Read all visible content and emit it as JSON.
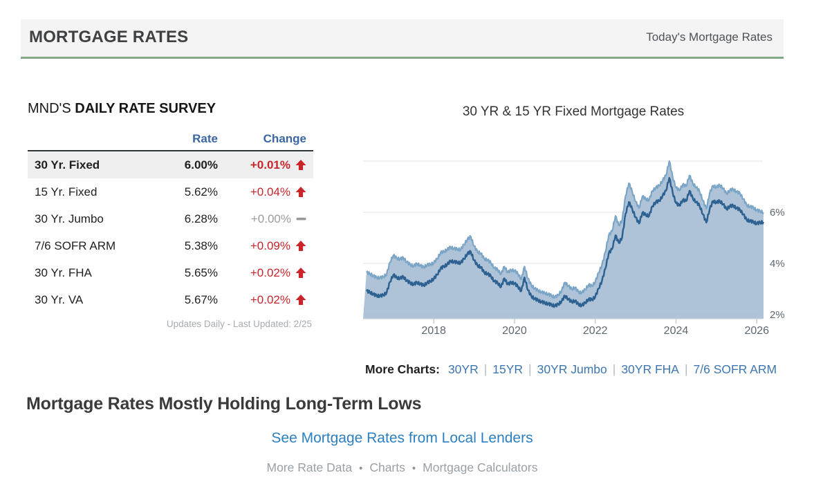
{
  "header": {
    "title": "MORTGAGE RATES",
    "right_link": "Today's Mortgage Rates"
  },
  "survey": {
    "title_prefix": "MND'S",
    "title_bold": "DAILY RATE SURVEY",
    "columns": {
      "rate": "Rate",
      "change": "Change"
    },
    "rows": [
      {
        "label": "30 Yr. Fixed",
        "rate": "6.00%",
        "change": "+0.01%",
        "direction": "up",
        "highlight": true
      },
      {
        "label": "15 Yr. Fixed",
        "rate": "5.62%",
        "change": "+0.04%",
        "direction": "up",
        "highlight": false
      },
      {
        "label": "30 Yr. Jumbo",
        "rate": "6.28%",
        "change": "+0.00%",
        "direction": "flat",
        "highlight": false
      },
      {
        "label": "7/6 SOFR ARM",
        "rate": "5.38%",
        "change": "+0.09%",
        "direction": "up",
        "highlight": false
      },
      {
        "label": "30 Yr. FHA",
        "rate": "5.65%",
        "change": "+0.02%",
        "direction": "up",
        "highlight": false
      },
      {
        "label": "30 Yr. VA",
        "rate": "5.67%",
        "change": "+0.02%",
        "direction": "up",
        "highlight": false
      }
    ],
    "footnote": "Updates Daily - Last Updated: 2/25"
  },
  "chart_data": {
    "type": "area",
    "title": "30 YR & 15 YR Fixed Mortgage Rates",
    "xlabel": "",
    "ylabel": "",
    "x_start_year": 2016.3333,
    "x_step_years": 0.08333,
    "xlim": [
      2016.25,
      2026.15
    ],
    "ylim": [
      1.84,
      8
    ],
    "x_ticks": [
      2018,
      2020,
      2022,
      2024,
      2026
    ],
    "y_ticks": [
      6,
      4,
      2
    ],
    "y_tick_suffix": "%",
    "grid": true,
    "legend_position": "none",
    "series": [
      {
        "name": "30 Yr Fixed",
        "style": "area+line",
        "line_color": "#7ba5c6",
        "fill_color": "#a7bed4",
        "values": [
          3.65,
          3.6,
          3.52,
          3.45,
          3.44,
          3.47,
          3.58,
          4.05,
          4.32,
          4.2,
          4.17,
          4.22,
          4.05,
          3.96,
          3.89,
          3.99,
          3.92,
          3.85,
          3.94,
          3.96,
          4.02,
          4.18,
          4.42,
          4.46,
          4.54,
          4.64,
          4.58,
          4.56,
          4.54,
          4.74,
          4.94,
          5.05,
          4.68,
          4.46,
          4.4,
          4.18,
          4.14,
          4.02,
          3.82,
          3.76,
          3.58,
          3.88,
          3.65,
          3.74,
          3.72,
          3.6,
          3.38,
          3.88,
          3.4,
          3.15,
          3.02,
          2.94,
          2.88,
          2.84,
          2.8,
          2.74,
          2.68,
          2.76,
          2.94,
          3.26,
          3.12,
          3.0,
          3.06,
          2.88,
          2.86,
          2.98,
          3.16,
          3.12,
          3.28,
          3.64,
          3.94,
          4.44,
          5.1,
          5.26,
          5.86,
          5.48,
          5.7,
          6.64,
          7.14,
          6.8,
          6.42,
          6.16,
          6.62,
          6.52,
          6.48,
          6.84,
          6.96,
          7.04,
          7.24,
          7.44,
          8.0,
          7.38,
          6.96,
          6.86,
          7.08,
          7.02,
          7.44,
          7.12,
          6.98,
          6.82,
          6.46,
          6.14,
          6.74,
          7.04,
          6.98,
          7.06,
          6.94,
          6.72,
          6.86,
          6.9,
          6.8,
          6.74,
          6.52,
          6.28,
          6.22,
          6.18,
          6.08,
          6.04,
          6.0
        ]
      },
      {
        "name": "15 Yr Fixed",
        "style": "line",
        "line_color": "#2d6191",
        "values": [
          2.92,
          2.88,
          2.8,
          2.74,
          2.73,
          2.76,
          2.86,
          3.28,
          3.56,
          3.44,
          3.42,
          3.48,
          3.32,
          3.24,
          3.18,
          3.26,
          3.2,
          3.14,
          3.24,
          3.3,
          3.4,
          3.56,
          3.8,
          3.88,
          3.96,
          4.1,
          4.06,
          4.04,
          4.02,
          4.18,
          4.38,
          4.46,
          4.12,
          3.92,
          3.86,
          3.64,
          3.6,
          3.5,
          3.3,
          3.24,
          3.08,
          3.42,
          3.18,
          3.26,
          3.22,
          3.1,
          2.92,
          3.45,
          2.95,
          2.72,
          2.62,
          2.56,
          2.5,
          2.46,
          2.42,
          2.38,
          2.34,
          2.4,
          2.52,
          2.74,
          2.6,
          2.5,
          2.54,
          2.4,
          2.36,
          2.46,
          2.6,
          2.58,
          2.7,
          3.02,
          3.32,
          3.8,
          4.4,
          4.56,
          5.1,
          4.8,
          5.02,
          5.94,
          6.4,
          6.12,
          5.8,
          5.56,
          5.98,
          5.9,
          5.86,
          6.24,
          6.4,
          6.44,
          6.64,
          6.84,
          7.35,
          6.78,
          6.36,
          6.26,
          6.48,
          6.44,
          6.84,
          6.54,
          6.4,
          6.26,
          5.92,
          5.6,
          6.12,
          6.44,
          6.38,
          6.44,
          6.32,
          6.12,
          6.24,
          6.26,
          6.16,
          6.1,
          5.92,
          5.7,
          5.66,
          5.62,
          5.56,
          5.6,
          5.62
        ]
      }
    ]
  },
  "more_charts": {
    "label": "More Charts:",
    "links": [
      "30YR",
      "15YR",
      "30YR Jumbo",
      "30YR FHA",
      "7/6 SOFR ARM"
    ]
  },
  "headline": "Mortgage Rates Mostly Holding Long-Term Lows",
  "cta_link": "See Mortgage Rates from Local Lenders",
  "footer_links": [
    "More Rate Data",
    "Charts",
    "Mortgage Calculators"
  ],
  "colors": {
    "header_bg": "#f4f4f4",
    "header_underline_green": "#82a884",
    "table_header_blue": "#3a66a4",
    "change_up_red": "#c9252b",
    "change_flat_gray": "#97999c",
    "row_highlight_bg": "#efefef",
    "link_blue": "#3d76b0",
    "cta_blue": "#2c7fc0",
    "muted_gray": "#9aa0a6",
    "chart_fill": "#a7bed4",
    "chart_line_30yr": "#7ba5c6",
    "chart_line_15yr": "#2d6191",
    "axis_text": "#5d6770",
    "gridline": "#e1e3e5"
  }
}
